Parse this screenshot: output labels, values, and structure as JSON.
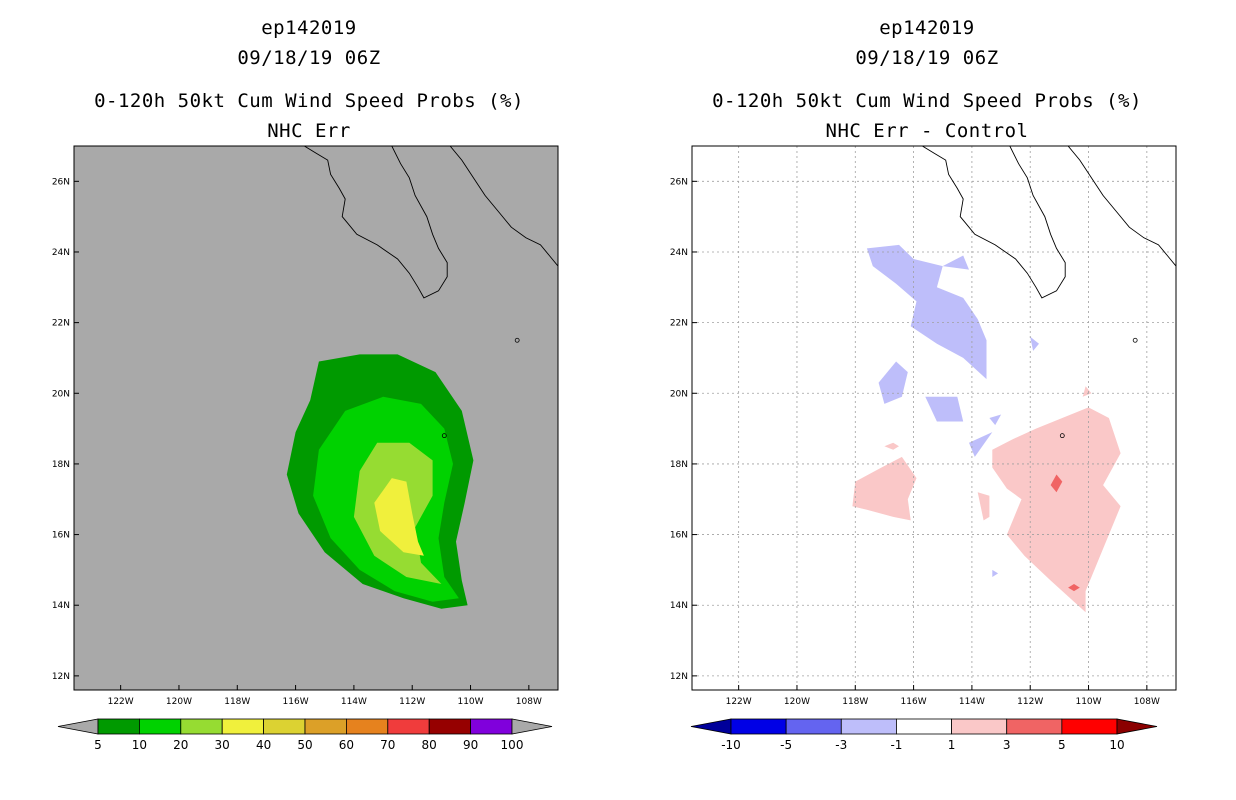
{
  "chart_data": [
    {
      "type": "contour-map",
      "title_lines": [
        "ep142019",
        "09/18/19 06Z",
        "0-120h 50kt Cum Wind Speed Probs (%)",
        "NHC Err"
      ],
      "background": "#a9a9a9",
      "lon_ticks": [
        "122W",
        "120W",
        "118W",
        "116W",
        "114W",
        "112W",
        "110W",
        "108W"
      ],
      "lat_ticks": [
        "26N",
        "24N",
        "22N",
        "20N",
        "18N",
        "16N",
        "14N",
        "12N"
      ],
      "xlim_lon": [
        -123.6,
        -107.0
      ],
      "ylim_lat": [
        11.6,
        27.0
      ],
      "grid": false,
      "colorbar": {
        "levels": [
          "5",
          "10",
          "20",
          "30",
          "40",
          "50",
          "60",
          "70",
          "80",
          "90",
          "100"
        ],
        "colors": [
          "#009a00",
          "#00d200",
          "#96dc32",
          "#f0f03c",
          "#dcd232",
          "#dca028",
          "#e6821e",
          "#f03c3c",
          "#960000",
          "#8000dc"
        ],
        "under_color": "#a9a9a9",
        "over_color": "#a9a9a9"
      },
      "contours": [
        {
          "level": 5,
          "color": "#009a00",
          "polygon": [
            [
              -115.2,
              20.9
            ],
            [
              -113.8,
              21.1
            ],
            [
              -112.5,
              21.1
            ],
            [
              -111.2,
              20.6
            ],
            [
              -110.3,
              19.5
            ],
            [
              -109.9,
              18.1
            ],
            [
              -110.2,
              16.9
            ],
            [
              -110.5,
              15.8
            ],
            [
              -110.3,
              14.7
            ],
            [
              -110.1,
              14.0
            ],
            [
              -111.0,
              13.9
            ],
            [
              -112.3,
              14.2
            ],
            [
              -113.7,
              14.6
            ],
            [
              -115.0,
              15.5
            ],
            [
              -115.9,
              16.6
            ],
            [
              -116.3,
              17.7
            ],
            [
              -116.0,
              18.9
            ],
            [
              -115.5,
              19.8
            ]
          ]
        },
        {
          "level": 10,
          "color": "#00d200",
          "polygon": [
            [
              -114.3,
              19.5
            ],
            [
              -113.0,
              19.9
            ],
            [
              -111.7,
              19.7
            ],
            [
              -110.9,
              19.0
            ],
            [
              -110.6,
              18.0
            ],
            [
              -110.9,
              16.9
            ],
            [
              -111.1,
              15.9
            ],
            [
              -110.9,
              14.8
            ],
            [
              -110.4,
              14.2
            ],
            [
              -111.3,
              14.1
            ],
            [
              -112.6,
              14.4
            ],
            [
              -113.8,
              15.0
            ],
            [
              -114.8,
              15.9
            ],
            [
              -115.4,
              17.1
            ],
            [
              -115.2,
              18.4
            ]
          ]
        },
        {
          "level": 20,
          "color": "#96dc32",
          "polygon": [
            [
              -113.2,
              18.6
            ],
            [
              -112.1,
              18.6
            ],
            [
              -111.3,
              18.1
            ],
            [
              -111.3,
              17.1
            ],
            [
              -111.9,
              16.2
            ],
            [
              -111.7,
              15.2
            ],
            [
              -111.0,
              14.6
            ],
            [
              -112.2,
              14.8
            ],
            [
              -113.3,
              15.4
            ],
            [
              -114.0,
              16.5
            ],
            [
              -113.8,
              17.8
            ]
          ]
        },
        {
          "level": 30,
          "color": "#f0f03c",
          "polygon": [
            [
              -112.7,
              17.6
            ],
            [
              -112.2,
              17.5
            ],
            [
              -112.0,
              16.6
            ],
            [
              -111.8,
              15.8
            ],
            [
              -111.6,
              15.4
            ],
            [
              -112.3,
              15.5
            ],
            [
              -113.1,
              16.1
            ],
            [
              -113.3,
              16.9
            ]
          ]
        }
      ]
    },
    {
      "type": "contour-map",
      "title_lines": [
        "ep142019",
        "09/18/19 06Z",
        "0-120h 50kt Cum Wind Speed Probs (%)",
        "NHC Err - Control"
      ],
      "background": "#ffffff",
      "lon_ticks": [
        "122W",
        "120W",
        "118W",
        "116W",
        "114W",
        "112W",
        "110W",
        "108W"
      ],
      "lat_ticks": [
        "26N",
        "24N",
        "22N",
        "20N",
        "18N",
        "16N",
        "14N",
        "12N"
      ],
      "xlim_lon": [
        -123.6,
        -107.0
      ],
      "ylim_lat": [
        11.6,
        27.0
      ],
      "grid": true,
      "colorbar": {
        "levels": [
          "-10",
          "-5",
          "-3",
          "-1",
          "1",
          "3",
          "5",
          "10"
        ],
        "colors": [
          "#0000e6",
          "#6464f0",
          "#bebefa",
          "#ffffff",
          "#fac8c8",
          "#f06464",
          "#ff0000"
        ],
        "under_color": "#00009a",
        "over_color": "#8b0000"
      },
      "contours": [
        {
          "level": -3,
          "color": "#bebefa",
          "polygon": [
            [
              -117.6,
              24.1
            ],
            [
              -116.5,
              24.2
            ],
            [
              -116.0,
              23.8
            ],
            [
              -115.0,
              23.6
            ],
            [
              -115.2,
              23.0
            ],
            [
              -114.3,
              22.7
            ],
            [
              -113.8,
              22.1
            ],
            [
              -113.5,
              21.5
            ],
            [
              -113.5,
              20.4
            ],
            [
              -114.3,
              21.0
            ],
            [
              -115.2,
              21.4
            ],
            [
              -116.1,
              21.9
            ],
            [
              -115.9,
              22.6
            ],
            [
              -116.6,
              23.1
            ],
            [
              -117.4,
              23.6
            ]
          ]
        },
        {
          "level": -3,
          "color": "#bebefa",
          "polygon": [
            [
              -116.6,
              20.9
            ],
            [
              -116.2,
              20.6
            ],
            [
              -116.4,
              19.9
            ],
            [
              -117.0,
              19.7
            ],
            [
              -117.2,
              20.3
            ]
          ]
        },
        {
          "level": -3,
          "color": "#bebefa",
          "polygon": [
            [
              -115.6,
              19.9
            ],
            [
              -114.5,
              19.9
            ],
            [
              -114.3,
              19.2
            ],
            [
              -115.2,
              19.2
            ]
          ]
        },
        {
          "level": -3,
          "color": "#bebefa",
          "polygon": [
            [
              -113.3,
              18.9
            ],
            [
              -113.9,
              18.2
            ],
            [
              -114.1,
              18.6
            ]
          ]
        },
        {
          "level": -3,
          "color": "#bebefa",
          "polygon": [
            [
              -115.0,
              23.6
            ],
            [
              -114.3,
              23.9
            ],
            [
              -114.1,
              23.5
            ]
          ]
        },
        {
          "level": -3,
          "color": "#bebefa",
          "polygon": [
            [
              -112.0,
              21.6
            ],
            [
              -111.7,
              21.4
            ],
            [
              -111.9,
              21.2
            ]
          ]
        },
        {
          "level": -3,
          "color": "#bebefa",
          "polygon": [
            [
              -113.4,
              19.3
            ],
            [
              -113.0,
              19.4
            ],
            [
              -113.2,
              19.1
            ]
          ]
        },
        {
          "level": -3,
          "color": "#bebefa",
          "polygon": [
            [
              -113.3,
              15.0
            ],
            [
              -113.1,
              14.9
            ],
            [
              -113.3,
              14.8
            ]
          ]
        },
        {
          "level": 1,
          "color": "#fac8c8",
          "polygon": [
            [
              -111.8,
              19.0
            ],
            [
              -110.0,
              19.6
            ],
            [
              -109.3,
              19.3
            ],
            [
              -108.9,
              18.3
            ],
            [
              -109.5,
              17.4
            ],
            [
              -108.9,
              16.8
            ],
            [
              -109.3,
              16.0
            ],
            [
              -109.7,
              15.2
            ],
            [
              -110.1,
              14.4
            ],
            [
              -110.1,
              13.8
            ],
            [
              -111.3,
              14.7
            ],
            [
              -112.2,
              15.4
            ],
            [
              -112.8,
              16.0
            ],
            [
              -112.3,
              17.0
            ],
            [
              -112.8,
              17.3
            ],
            [
              -113.3,
              17.9
            ],
            [
              -113.3,
              18.4
            ],
            [
              -112.6,
              18.7
            ]
          ]
        },
        {
          "level": 1,
          "color": "#fac8c8",
          "polygon": [
            [
              -118.0,
              17.5
            ],
            [
              -117.1,
              17.9
            ],
            [
              -116.4,
              18.2
            ],
            [
              -115.9,
              17.6
            ],
            [
              -116.2,
              17.0
            ],
            [
              -116.1,
              16.4
            ],
            [
              -116.7,
              16.5
            ],
            [
              -117.6,
              16.7
            ],
            [
              -118.1,
              16.8
            ]
          ]
        },
        {
          "level": 1,
          "color": "#fac8c8",
          "polygon": [
            [
              -113.8,
              17.2
            ],
            [
              -113.4,
              17.1
            ],
            [
              -113.4,
              16.5
            ],
            [
              -113.6,
              16.4
            ]
          ]
        },
        {
          "level": 1,
          "color": "#fac8c8",
          "polygon": [
            [
              -116.7,
              18.6
            ],
            [
              -116.5,
              18.5
            ],
            [
              -116.7,
              18.4
            ],
            [
              -117.0,
              18.5
            ]
          ]
        },
        {
          "level": 1,
          "color": "#fac8c8",
          "polygon": [
            [
              -110.1,
              20.2
            ],
            [
              -109.9,
              20.0
            ],
            [
              -110.2,
              19.9
            ]
          ]
        },
        {
          "level": 3,
          "color": "#f06464",
          "polygon": [
            [
              -111.1,
              17.7
            ],
            [
              -110.9,
              17.5
            ],
            [
              -111.1,
              17.2
            ],
            [
              -111.3,
              17.4
            ]
          ]
        },
        {
          "level": 3,
          "color": "#f06464",
          "polygon": [
            [
              -110.5,
              14.6
            ],
            [
              -110.3,
              14.5
            ],
            [
              -110.5,
              14.4
            ],
            [
              -110.7,
              14.5
            ]
          ]
        }
      ]
    }
  ]
}
